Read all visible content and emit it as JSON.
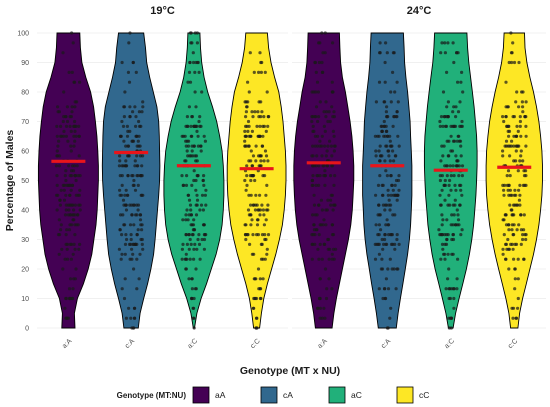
{
  "chart_data": {
    "type": "violin",
    "ylabel": "Percentage of Males",
    "xlabel": "Genotype (MT x NU)",
    "ylim": [
      0,
      100
    ],
    "yticks": [
      0,
      10,
      20,
      30,
      40,
      50,
      60,
      70,
      80,
      90,
      100
    ],
    "grid": true,
    "legend": {
      "title": "Genotype (MT:NU)",
      "position": "bottom",
      "entries": [
        {
          "label": "aA",
          "color": "#440154"
        },
        {
          "label": "cA",
          "color": "#31688e"
        },
        {
          "label": "aC",
          "color": "#21b07a"
        },
        {
          "label": "cC",
          "color": "#fde725"
        }
      ]
    },
    "panels": [
      {
        "title": "19°C",
        "groups": [
          {
            "category": "a:A",
            "series": "aA",
            "color": "#440154",
            "mean": 56.5,
            "density": [
              [
                0,
                0.22
              ],
              [
                5,
                0.2
              ],
              [
                10,
                0.3
              ],
              [
                15,
                0.5
              ],
              [
                20,
                0.66
              ],
              [
                25,
                0.78
              ],
              [
                30,
                0.85
              ],
              [
                35,
                0.92
              ],
              [
                40,
                0.96
              ],
              [
                45,
                0.98
              ],
              [
                50,
                1.0
              ],
              [
                55,
                1.0
              ],
              [
                60,
                0.98
              ],
              [
                65,
                0.95
              ],
              [
                70,
                0.9
              ],
              [
                75,
                0.84
              ],
              [
                80,
                0.74
              ],
              [
                85,
                0.58
              ],
              [
                90,
                0.45
              ],
              [
                95,
                0.4
              ],
              [
                100,
                0.38
              ]
            ]
          },
          {
            "category": "c:A",
            "series": "cA",
            "color": "#31688e",
            "mean": 59.5,
            "density": [
              [
                0,
                0.24
              ],
              [
                5,
                0.3
              ],
              [
                10,
                0.42
              ],
              [
                15,
                0.55
              ],
              [
                20,
                0.66
              ],
              [
                25,
                0.75
              ],
              [
                30,
                0.8
              ],
              [
                35,
                0.84
              ],
              [
                40,
                0.88
              ],
              [
                45,
                0.92
              ],
              [
                50,
                0.95
              ],
              [
                55,
                0.96
              ],
              [
                60,
                0.95
              ],
              [
                65,
                0.94
              ],
              [
                70,
                0.92
              ],
              [
                75,
                0.86
              ],
              [
                80,
                0.74
              ],
              [
                85,
                0.62
              ],
              [
                90,
                0.52
              ],
              [
                95,
                0.48
              ],
              [
                100,
                0.42
              ]
            ]
          },
          {
            "category": "a:C",
            "series": "aC",
            "color": "#21b07a",
            "mean": 55.0,
            "density": [
              [
                0,
                0.02
              ],
              [
                5,
                0.1
              ],
              [
                10,
                0.24
              ],
              [
                15,
                0.42
              ],
              [
                20,
                0.58
              ],
              [
                25,
                0.74
              ],
              [
                30,
                0.86
              ],
              [
                35,
                0.94
              ],
              [
                40,
                0.98
              ],
              [
                45,
                1.0
              ],
              [
                50,
                1.0
              ],
              [
                55,
                0.98
              ],
              [
                60,
                0.94
              ],
              [
                65,
                0.86
              ],
              [
                70,
                0.76
              ],
              [
                75,
                0.62
              ],
              [
                80,
                0.46
              ],
              [
                85,
                0.34
              ],
              [
                90,
                0.26
              ],
              [
                95,
                0.22
              ],
              [
                100,
                0.2
              ]
            ]
          },
          {
            "category": "c:C",
            "series": "cC",
            "color": "#fde725",
            "mean": 54.0,
            "density": [
              [
                0,
                0.1
              ],
              [
                5,
                0.16
              ],
              [
                10,
                0.24
              ],
              [
                15,
                0.36
              ],
              [
                20,
                0.5
              ],
              [
                25,
                0.64
              ],
              [
                30,
                0.76
              ],
              [
                35,
                0.86
              ],
              [
                40,
                0.92
              ],
              [
                45,
                0.96
              ],
              [
                50,
                0.98
              ],
              [
                55,
                0.98
              ],
              [
                60,
                0.96
              ],
              [
                65,
                0.92
              ],
              [
                70,
                0.88
              ],
              [
                75,
                0.82
              ],
              [
                80,
                0.74
              ],
              [
                85,
                0.6
              ],
              [
                90,
                0.48
              ],
              [
                95,
                0.4
              ],
              [
                100,
                0.36
              ]
            ]
          }
        ]
      },
      {
        "title": "24°C",
        "groups": [
          {
            "category": "a:A",
            "series": "aA",
            "color": "#440154",
            "mean": 56.0,
            "density": [
              [
                0,
                0.28
              ],
              [
                5,
                0.34
              ],
              [
                10,
                0.42
              ],
              [
                15,
                0.52
              ],
              [
                20,
                0.62
              ],
              [
                25,
                0.72
              ],
              [
                30,
                0.82
              ],
              [
                35,
                0.9
              ],
              [
                40,
                0.95
              ],
              [
                45,
                0.98
              ],
              [
                50,
                1.0
              ],
              [
                55,
                1.0
              ],
              [
                60,
                0.98
              ],
              [
                65,
                0.94
              ],
              [
                70,
                0.88
              ],
              [
                75,
                0.8
              ],
              [
                80,
                0.72
              ],
              [
                85,
                0.62
              ],
              [
                90,
                0.56
              ],
              [
                95,
                0.54
              ],
              [
                100,
                0.52
              ]
            ]
          },
          {
            "category": "c:A",
            "series": "cA",
            "color": "#31688e",
            "mean": 55.0,
            "density": [
              [
                0,
                0.3
              ],
              [
                5,
                0.36
              ],
              [
                10,
                0.44
              ],
              [
                15,
                0.52
              ],
              [
                20,
                0.6
              ],
              [
                25,
                0.68
              ],
              [
                30,
                0.74
              ],
              [
                35,
                0.78
              ],
              [
                40,
                0.8
              ],
              [
                45,
                0.82
              ],
              [
                50,
                0.82
              ],
              [
                55,
                0.82
              ],
              [
                60,
                0.8
              ],
              [
                65,
                0.78
              ],
              [
                70,
                0.76
              ],
              [
                75,
                0.72
              ],
              [
                80,
                0.68
              ],
              [
                85,
                0.62
              ],
              [
                90,
                0.58
              ],
              [
                95,
                0.56
              ],
              [
                100,
                0.54
              ]
            ]
          },
          {
            "category": "a:C",
            "series": "aC",
            "color": "#21b07a",
            "mean": 53.5,
            "density": [
              [
                0,
                0.08
              ],
              [
                5,
                0.16
              ],
              [
                10,
                0.28
              ],
              [
                15,
                0.4
              ],
              [
                20,
                0.52
              ],
              [
                25,
                0.62
              ],
              [
                30,
                0.7
              ],
              [
                35,
                0.76
              ],
              [
                40,
                0.8
              ],
              [
                45,
                0.84
              ],
              [
                50,
                0.86
              ],
              [
                55,
                0.88
              ],
              [
                60,
                0.88
              ],
              [
                65,
                0.86
              ],
              [
                70,
                0.82
              ],
              [
                75,
                0.78
              ],
              [
                80,
                0.72
              ],
              [
                85,
                0.66
              ],
              [
                90,
                0.6
              ],
              [
                95,
                0.56
              ],
              [
                100,
                0.54
              ]
            ]
          },
          {
            "category": "c:C",
            "series": "cC",
            "color": "#fde725",
            "mean": 54.5,
            "density": [
              [
                0,
                0.12
              ],
              [
                5,
                0.18
              ],
              [
                10,
                0.28
              ],
              [
                15,
                0.4
              ],
              [
                20,
                0.52
              ],
              [
                25,
                0.64
              ],
              [
                30,
                0.74
              ],
              [
                35,
                0.82
              ],
              [
                40,
                0.88
              ],
              [
                45,
                0.92
              ],
              [
                50,
                0.94
              ],
              [
                55,
                0.94
              ],
              [
                60,
                0.92
              ],
              [
                65,
                0.88
              ],
              [
                70,
                0.82
              ],
              [
                75,
                0.74
              ],
              [
                80,
                0.64
              ],
              [
                85,
                0.52
              ],
              [
                90,
                0.42
              ],
              [
                95,
                0.36
              ],
              [
                100,
                0.34
              ]
            ]
          }
        ]
      }
    ]
  }
}
